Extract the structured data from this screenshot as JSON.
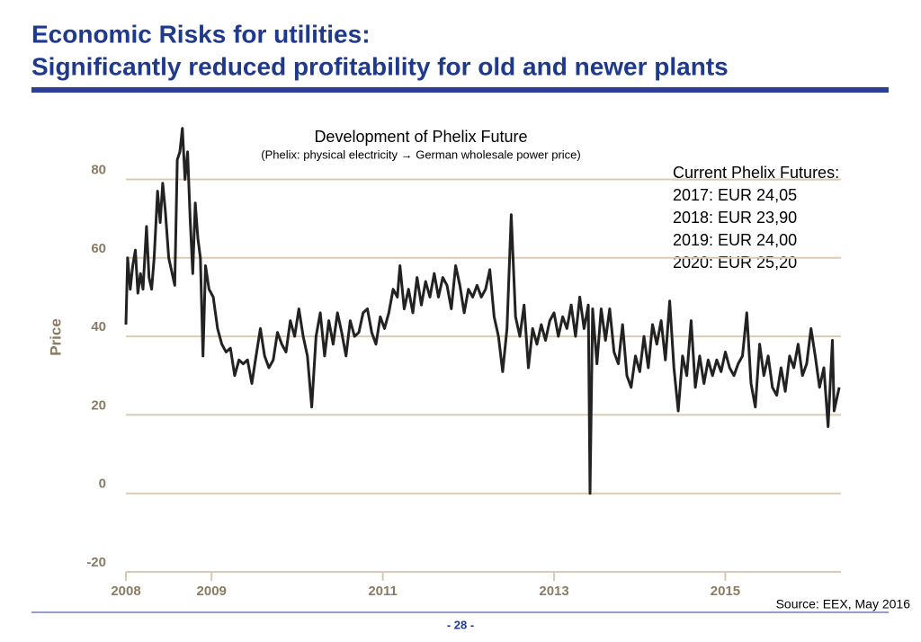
{
  "slide": {
    "title": [
      "Economic Risks for utilities:",
      "Significantly reduced profitability for old and newer plants"
    ],
    "source": "Source: EEX, May 2016",
    "page": "- 28 -"
  },
  "chart_data": {
    "type": "line",
    "title": "Development of Phelix Future",
    "subtitle": "(Phelix: physical electricity → German wholesale power price)",
    "ylabel": "Price",
    "annotation": {
      "heading": "Current Phelix Futures:",
      "lines": [
        "2017: EUR 24,05",
        "2018: EUR 23,90",
        "2019: EUR 24,00",
        "2020: EUR 25,20"
      ]
    },
    "color": "#222222",
    "grid": true,
    "xlim": [
      2008,
      2016.35
    ],
    "xticks": [
      2008,
      2009,
      2011,
      2013,
      2015
    ],
    "ylim": [
      -20,
      95
    ],
    "yticks": [
      -20,
      0,
      20,
      40,
      60,
      80
    ],
    "x": [
      2008.0,
      2008.02,
      2008.05,
      2008.08,
      2008.11,
      2008.14,
      2008.17,
      2008.2,
      2008.24,
      2008.27,
      2008.3,
      2008.33,
      2008.37,
      2008.4,
      2008.43,
      2008.46,
      2008.5,
      2008.53,
      2008.57,
      2008.6,
      2008.63,
      2008.66,
      2008.69,
      2008.72,
      2008.75,
      2008.78,
      2008.81,
      2008.84,
      2008.87,
      2008.9,
      2008.93,
      2008.97,
      2009.02,
      2009.07,
      2009.12,
      2009.17,
      2009.22,
      2009.27,
      2009.32,
      2009.37,
      2009.42,
      2009.47,
      2009.52,
      2009.57,
      2009.62,
      2009.67,
      2009.72,
      2009.77,
      2009.82,
      2009.87,
      2009.92,
      2009.97,
      2010.02,
      2010.07,
      2010.12,
      2010.17,
      2010.22,
      2010.27,
      2010.32,
      2010.37,
      2010.42,
      2010.47,
      2010.52,
      2010.57,
      2010.62,
      2010.67,
      2010.72,
      2010.77,
      2010.82,
      2010.87,
      2010.92,
      2010.97,
      2011.02,
      2011.07,
      2011.12,
      2011.17,
      2011.2,
      2011.25,
      2011.3,
      2011.35,
      2011.4,
      2011.45,
      2011.5,
      2011.55,
      2011.6,
      2011.65,
      2011.7,
      2011.75,
      2011.8,
      2011.85,
      2011.9,
      2011.95,
      2012.0,
      2012.05,
      2012.1,
      2012.15,
      2012.2,
      2012.25,
      2012.3,
      2012.35,
      2012.4,
      2012.45,
      2012.5,
      2012.55,
      2012.6,
      2012.65,
      2012.7,
      2012.75,
      2012.8,
      2012.85,
      2012.9,
      2012.95,
      2013.0,
      2013.05,
      2013.1,
      2013.15,
      2013.2,
      2013.25,
      2013.3,
      2013.35,
      2013.4,
      2013.42,
      2013.45,
      2013.5,
      2013.55,
      2013.6,
      2013.65,
      2013.7,
      2013.75,
      2013.8,
      2013.85,
      2013.9,
      2013.95,
      2014.0,
      2014.05,
      2014.1,
      2014.15,
      2014.2,
      2014.25,
      2014.3,
      2014.35,
      2014.4,
      2014.45,
      2014.5,
      2014.55,
      2014.6,
      2014.65,
      2014.7,
      2014.75,
      2014.8,
      2014.85,
      2014.9,
      2014.95,
      2015.0,
      2015.05,
      2015.1,
      2015.15,
      2015.2,
      2015.25,
      2015.3,
      2015.35,
      2015.4,
      2015.45,
      2015.5,
      2015.55,
      2015.6,
      2015.65,
      2015.7,
      2015.75,
      2015.8,
      2015.85,
      2015.9,
      2015.95,
      2016.0,
      2016.05,
      2016.1,
      2016.15,
      2016.2,
      2016.25,
      2016.27,
      2016.3,
      2016.33
    ],
    "values": [
      43,
      60,
      52,
      58,
      62,
      51,
      56,
      52,
      68,
      55,
      52,
      60,
      77,
      69,
      79,
      72,
      60,
      57,
      53,
      85,
      87,
      93,
      80,
      87,
      70,
      56,
      74,
      65,
      60,
      35,
      58,
      52,
      50,
      42,
      38,
      36,
      37,
      30,
      34,
      33,
      34,
      28,
      35,
      42,
      35,
      32,
      34,
      41,
      38,
      36,
      44,
      40,
      47,
      40,
      35,
      22,
      40,
      46,
      35,
      44,
      38,
      46,
      41,
      35,
      44,
      40,
      41,
      46,
      47,
      41,
      38,
      45,
      42,
      46,
      52,
      50,
      58,
      47,
      52,
      46,
      55,
      48,
      54,
      50,
      56,
      50,
      55,
      53,
      47,
      58,
      53,
      46,
      52,
      50,
      53,
      50,
      52,
      57,
      45,
      40,
      31,
      42,
      71,
      45,
      40,
      48,
      32,
      42,
      38,
      43,
      39,
      44,
      46,
      40,
      45,
      42,
      48,
      40,
      50,
      42,
      48,
      0,
      47,
      33,
      47,
      39,
      47,
      36,
      33,
      43,
      30,
      27,
      35,
      31,
      40,
      32,
      43,
      38,
      44,
      34,
      49,
      32,
      21,
      35,
      30,
      44,
      27,
      35,
      28,
      34,
      30,
      34,
      31,
      36,
      32,
      30,
      33,
      35,
      46,
      28,
      22,
      38,
      30,
      35,
      27,
      25,
      32,
      26,
      35,
      32,
      38,
      30,
      33,
      42,
      35,
      27,
      32,
      17,
      39,
      21,
      24,
      27
    ]
  }
}
